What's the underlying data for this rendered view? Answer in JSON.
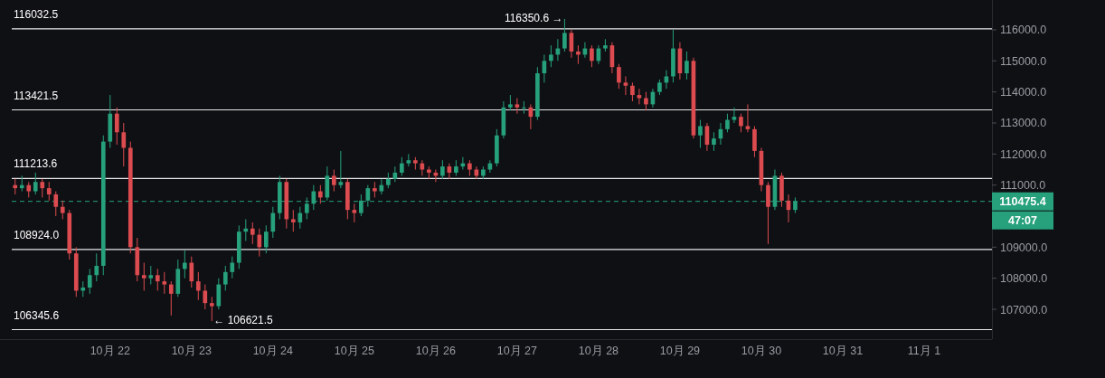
{
  "chart_data": {
    "type": "candlestick",
    "x": [
      "--10-20T20:00",
      "--10-20T22:00",
      "--10-21T00:00",
      "--10-21T02:00",
      "--10-21T04:00",
      "--10-21T06:00",
      "--10-21T08:00",
      "--10-21T10:00",
      "--10-21T12:00",
      "--10-21T14:00",
      "--10-21T16:00",
      "--10-21T18:00",
      "--10-21T20:00",
      "--10-21T22:00",
      "--10-22T00:00",
      "--10-22T02:00",
      "--10-22T04:00",
      "--10-22T06:00",
      "--10-22T08:00",
      "--10-22T10:00",
      "--10-22T12:00",
      "--10-22T14:00",
      "--10-22T16:00",
      "--10-22T18:00",
      "--10-22T20:00",
      "--10-22T22:00",
      "--10-23T00:00",
      "--10-23T02:00",
      "--10-23T04:00",
      "--10-23T06:00",
      "--10-23T08:00",
      "--10-23T10:00",
      "--10-23T12:00",
      "--10-23T14:00",
      "--10-23T16:00",
      "--10-23T18:00",
      "--10-23T20:00",
      "--10-23T22:00",
      "--10-24T00:00",
      "--10-24T02:00",
      "--10-24T04:00",
      "--10-24T06:00",
      "--10-24T08:00",
      "--10-24T10:00",
      "--10-24T12:00",
      "--10-24T14:00",
      "--10-24T16:00",
      "--10-24T18:00",
      "--10-24T20:00",
      "--10-24T22:00",
      "--10-25T00:00",
      "--10-25T02:00",
      "--10-25T04:00",
      "--10-25T06:00",
      "--10-25T08:00",
      "--10-25T10:00",
      "--10-25T12:00",
      "--10-25T14:00",
      "--10-25T16:00",
      "--10-25T18:00",
      "--10-25T20:00",
      "--10-25T22:00",
      "--10-26T00:00",
      "--10-26T02:00",
      "--10-26T04:00",
      "--10-26T06:00",
      "--10-26T08:00",
      "--10-26T10:00",
      "--10-26T12:00",
      "--10-26T14:00",
      "--10-26T16:00",
      "--10-26T18:00",
      "--10-26T20:00",
      "--10-26T22:00",
      "--10-27T00:00",
      "--10-27T02:00",
      "--10-27T04:00",
      "--10-27T06:00",
      "--10-27T08:00",
      "--10-27T10:00",
      "--10-27T12:00",
      "--10-27T14:00",
      "--10-27T16:00",
      "--10-27T18:00",
      "--10-27T20:00",
      "--10-27T22:00",
      "--10-28T00:00",
      "--10-28T02:00",
      "--10-28T04:00",
      "--10-28T06:00",
      "--10-28T08:00",
      "--10-28T10:00",
      "--10-28T12:00",
      "--10-28T14:00",
      "--10-28T16:00",
      "--10-28T18:00",
      "--10-28T20:00",
      "--10-28T22:00",
      "--10-29T00:00",
      "--10-29T02:00",
      "--10-29T04:00",
      "--10-29T06:00",
      "--10-29T08:00",
      "--10-29T10:00",
      "--10-29T12:00",
      "--10-29T14:00",
      "--10-29T16:00",
      "--10-29T18:00",
      "--10-29T20:00",
      "--10-29T22:00",
      "--10-30T00:00",
      "--10-30T02:00",
      "--10-30T04:00",
      "--10-30T06:00",
      "--10-30T08:00",
      "--10-30T10:00"
    ],
    "ohlc": [
      [
        111000,
        111200,
        110700,
        110900
      ],
      [
        110900,
        111300,
        110800,
        111000
      ],
      [
        111000,
        111100,
        110600,
        110800
      ],
      [
        110800,
        111400,
        110700,
        111100
      ],
      [
        111100,
        111200,
        110600,
        110900
      ],
      [
        110900,
        111100,
        110500,
        110700
      ],
      [
        110700,
        110800,
        110000,
        110300
      ],
      [
        110300,
        110500,
        109900,
        110100
      ],
      [
        110100,
        110200,
        108600,
        108800
      ],
      [
        108800,
        109000,
        107400,
        107600
      ],
      [
        107600,
        107900,
        107400,
        107700
      ],
      [
        107700,
        108300,
        107500,
        108100
      ],
      [
        108100,
        108800,
        107900,
        108400
      ],
      [
        108400,
        112600,
        108100,
        112400
      ],
      [
        112400,
        113900,
        112200,
        113300
      ],
      [
        113300,
        113500,
        112300,
        112700
      ],
      [
        112700,
        113000,
        111600,
        112200
      ],
      [
        112200,
        112400,
        108800,
        109000
      ],
      [
        109000,
        109300,
        107900,
        108100
      ],
      [
        108100,
        108500,
        107600,
        108000
      ],
      [
        108000,
        108400,
        107800,
        108100
      ],
      [
        108100,
        108300,
        107600,
        107900
      ],
      [
        107900,
        108200,
        107500,
        107800
      ],
      [
        107800,
        107900,
        106800,
        107500
      ],
      [
        107500,
        108600,
        107400,
        108300
      ],
      [
        108300,
        108900,
        108000,
        108500
      ],
      [
        108500,
        108700,
        107700,
        107900
      ],
      [
        107900,
        108200,
        107300,
        107600
      ],
      [
        107600,
        107800,
        107000,
        107200
      ],
      [
        107200,
        107400,
        106621.5,
        107100
      ],
      [
        107100,
        108000,
        107000,
        107800
      ],
      [
        107800,
        108400,
        107600,
        108200
      ],
      [
        108200,
        108700,
        108000,
        108500
      ],
      [
        108500,
        109700,
        108300,
        109500
      ],
      [
        109500,
        109900,
        109200,
        109600
      ],
      [
        109600,
        109800,
        109100,
        109400
      ],
      [
        109400,
        109600,
        108700,
        109000
      ],
      [
        109000,
        109700,
        108800,
        109500
      ],
      [
        109500,
        110300,
        109300,
        110100
      ],
      [
        110100,
        111300,
        109900,
        111100
      ],
      [
        111100,
        111200,
        109600,
        109900
      ],
      [
        109900,
        110200,
        109500,
        109800
      ],
      [
        109800,
        110300,
        109600,
        110100
      ],
      [
        110100,
        110600,
        109900,
        110400
      ],
      [
        110400,
        111000,
        110200,
        110800
      ],
      [
        110800,
        111000,
        110400,
        110600
      ],
      [
        110600,
        111600,
        110500,
        111300
      ],
      [
        111300,
        111500,
        110800,
        111000
      ],
      [
        111000,
        112100,
        110900,
        111100
      ],
      [
        111100,
        111200,
        109900,
        110200
      ],
      [
        110200,
        110400,
        109800,
        110100
      ],
      [
        110100,
        110700,
        110000,
        110500
      ],
      [
        110500,
        111000,
        110300,
        110900
      ],
      [
        110900,
        111100,
        110600,
        110800
      ],
      [
        110800,
        111200,
        110700,
        111000
      ],
      [
        111000,
        111400,
        110900,
        111200
      ],
      [
        111200,
        111600,
        111100,
        111400
      ],
      [
        111400,
        111900,
        111300,
        111700
      ],
      [
        111700,
        112000,
        111600,
        111800
      ],
      [
        111800,
        111900,
        111500,
        111700
      ],
      [
        111700,
        111800,
        111300,
        111500
      ],
      [
        111500,
        111600,
        111200,
        111400
      ],
      [
        111400,
        111500,
        111100,
        111300
      ],
      [
        111300,
        111800,
        111200,
        111600
      ],
      [
        111600,
        111700,
        111200,
        111400
      ],
      [
        111400,
        111800,
        111300,
        111600
      ],
      [
        111600,
        111900,
        111500,
        111700
      ],
      [
        111700,
        111800,
        111300,
        111500
      ],
      [
        111500,
        111600,
        111200,
        111300
      ],
      [
        111300,
        111600,
        111200,
        111500
      ],
      [
        111500,
        111800,
        111400,
        111700
      ],
      [
        111700,
        112800,
        111600,
        112600
      ],
      [
        112600,
        113700,
        112500,
        113500
      ],
      [
        113500,
        113900,
        113400,
        113600
      ],
      [
        113600,
        113800,
        113300,
        113500
      ],
      [
        113500,
        113700,
        113300,
        113500
      ],
      [
        113500,
        113600,
        112800,
        113200
      ],
      [
        113200,
        114800,
        113100,
        114600
      ],
      [
        114600,
        115200,
        114300,
        115000
      ],
      [
        115000,
        115500,
        114800,
        115200
      ],
      [
        115200,
        115700,
        115000,
        115400
      ],
      [
        115400,
        116350.6,
        115300,
        115900
      ],
      [
        115900,
        116000,
        115100,
        115300
      ],
      [
        115300,
        115500,
        114900,
        115200
      ],
      [
        115200,
        115600,
        115100,
        115400
      ],
      [
        115400,
        115500,
        114800,
        115000
      ],
      [
        115000,
        115500,
        114900,
        115400
      ],
      [
        115400,
        115700,
        115300,
        115500
      ],
      [
        115500,
        115600,
        114600,
        114800
      ],
      [
        114800,
        114900,
        114100,
        114300
      ],
      [
        114300,
        114500,
        113900,
        114200
      ],
      [
        114200,
        114300,
        113700,
        113900
      ],
      [
        113900,
        114100,
        113600,
        113800
      ],
      [
        113800,
        114000,
        113400,
        113600
      ],
      [
        113600,
        114100,
        113500,
        114000
      ],
      [
        114000,
        114400,
        113900,
        114300
      ],
      [
        114300,
        114700,
        114100,
        114500
      ],
      [
        114500,
        116000,
        114300,
        115400
      ],
      [
        115400,
        115600,
        114400,
        114600
      ],
      [
        114600,
        115300,
        114400,
        115000
      ],
      [
        115000,
        115100,
        112500,
        112600
      ],
      [
        112600,
        113100,
        112200,
        112900
      ],
      [
        112900,
        113000,
        112100,
        112300
      ],
      [
        112300,
        112700,
        112100,
        112500
      ],
      [
        112500,
        113000,
        112300,
        112800
      ],
      [
        112800,
        113300,
        112700,
        113100
      ],
      [
        113100,
        113500,
        113000,
        113200
      ],
      [
        113200,
        113300,
        112700,
        112900
      ],
      [
        112900,
        113600,
        112700,
        112800
      ],
      [
        112800,
        112900,
        111900,
        112100
      ],
      [
        112100,
        112200,
        110800,
        111000
      ],
      [
        111000,
        111100,
        109100,
        110300
      ],
      [
        110300,
        111500,
        110200,
        111300
      ],
      [
        111300,
        111400,
        110300,
        110500
      ],
      [
        110500,
        110700,
        109800,
        110200
      ],
      [
        110200,
        110600,
        110100,
        110475.4
      ]
    ],
    "xlim": [
      "--10-20T19:00",
      "--11-01T20:00"
    ],
    "xticks": [
      {
        "value": "--10-22",
        "label": "10月 22"
      },
      {
        "value": "--10-23",
        "label": "10月 23"
      },
      {
        "value": "--10-24",
        "label": "10月 24"
      },
      {
        "value": "--10-25",
        "label": "10月 25"
      },
      {
        "value": "--10-26",
        "label": "10月 26"
      },
      {
        "value": "--10-27",
        "label": "10月 27"
      },
      {
        "value": "--10-28",
        "label": "10月 28"
      },
      {
        "value": "--10-29",
        "label": "10月 29"
      },
      {
        "value": "--10-30",
        "label": "10月 30"
      },
      {
        "value": "--10-31",
        "label": "10月 31"
      },
      {
        "value": "--11-01",
        "label": "11月 1"
      }
    ],
    "ylim": [
      106040,
      116960
    ],
    "yticks": [
      {
        "value": 107000,
        "label": "107000.0"
      },
      {
        "value": 108000,
        "label": "108000.0"
      },
      {
        "value": 109000,
        "label": "109000.0"
      },
      {
        "value": 111000,
        "label": "111000.0"
      },
      {
        "value": 112000,
        "label": "112000.0"
      },
      {
        "value": 113000,
        "label": "113000.0"
      },
      {
        "value": 114000,
        "label": "114000.0"
      },
      {
        "value": 115000,
        "label": "115000.0"
      },
      {
        "value": 116000,
        "label": "116000.0"
      }
    ],
    "ref_lines": [
      {
        "axis": "y",
        "value": 116032.5,
        "label": "116032.5"
      },
      {
        "axis": "y",
        "value": 113421.5,
        "label": "113421.5"
      },
      {
        "axis": "y",
        "value": 111213.6,
        "label": "111213.6"
      },
      {
        "axis": "y",
        "value": 108924.0,
        "label": "108924.0"
      },
      {
        "axis": "y",
        "value": 106345.6,
        "label": "106345.6"
      },
      {
        "axis": "y",
        "value": 110475.4,
        "label": "110475.4",
        "color": "#26a17b",
        "line_style": "dashed"
      }
    ],
    "annotations": [
      {
        "text": "116350.6 →",
        "x": "--10-27T14:00",
        "y": 116350.6
      },
      {
        "text": "← 106621.5",
        "x": "--10-23T06:00",
        "y": 106621.5
      },
      "47:07"
    ],
    "grid": false
  }
}
